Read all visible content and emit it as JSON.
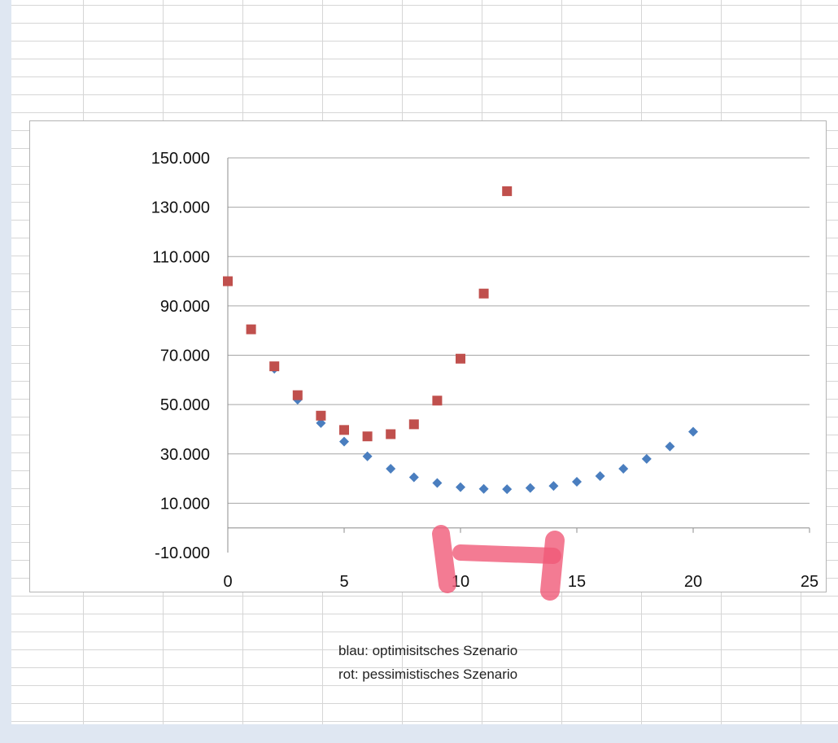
{
  "chart_data": {
    "type": "scatter",
    "title": "",
    "xlabel": "",
    "ylabel": "",
    "xlim": [
      0,
      25
    ],
    "ylim": [
      -10,
      150
    ],
    "x_ticks": [
      "0",
      "5",
      "10",
      "15",
      "20",
      "25"
    ],
    "y_ticks": [
      "-10.000",
      "10.000",
      "30.000",
      "50.000",
      "70.000",
      "90.000",
      "110.000",
      "130.000",
      "150.000"
    ],
    "grid": true,
    "legend": "none",
    "series": [
      {
        "color": "#4a7ebf",
        "marker": "diamond",
        "x": [
          0,
          1,
          2,
          3,
          4,
          5,
          6,
          7,
          8,
          9,
          10,
          11,
          12,
          13,
          14,
          15,
          16,
          17,
          18,
          19,
          20
        ],
        "y": [
          100,
          80.5,
          64.5,
          52,
          42.5,
          35,
          29,
          24,
          20.5,
          18.2,
          16.5,
          15.8,
          15.7,
          16.2,
          17,
          18.7,
          21,
          24,
          28,
          33,
          39
        ]
      },
      {
        "color": "#c0504d",
        "marker": "square",
        "x": [
          0,
          1,
          2,
          3,
          4,
          5,
          6,
          7,
          8,
          9,
          10,
          11,
          12
        ],
        "y": [
          100,
          80.5,
          65.5,
          53.8,
          45.5,
          39.7,
          37.1,
          38,
          42,
          51.6,
          68.6,
          95,
          136.5
        ]
      }
    ]
  },
  "notes": {
    "line1": "blau: optimisitsches Szenario",
    "line2": "rot: pessimistisches Szenario"
  },
  "highlight_color": "#f05a78"
}
